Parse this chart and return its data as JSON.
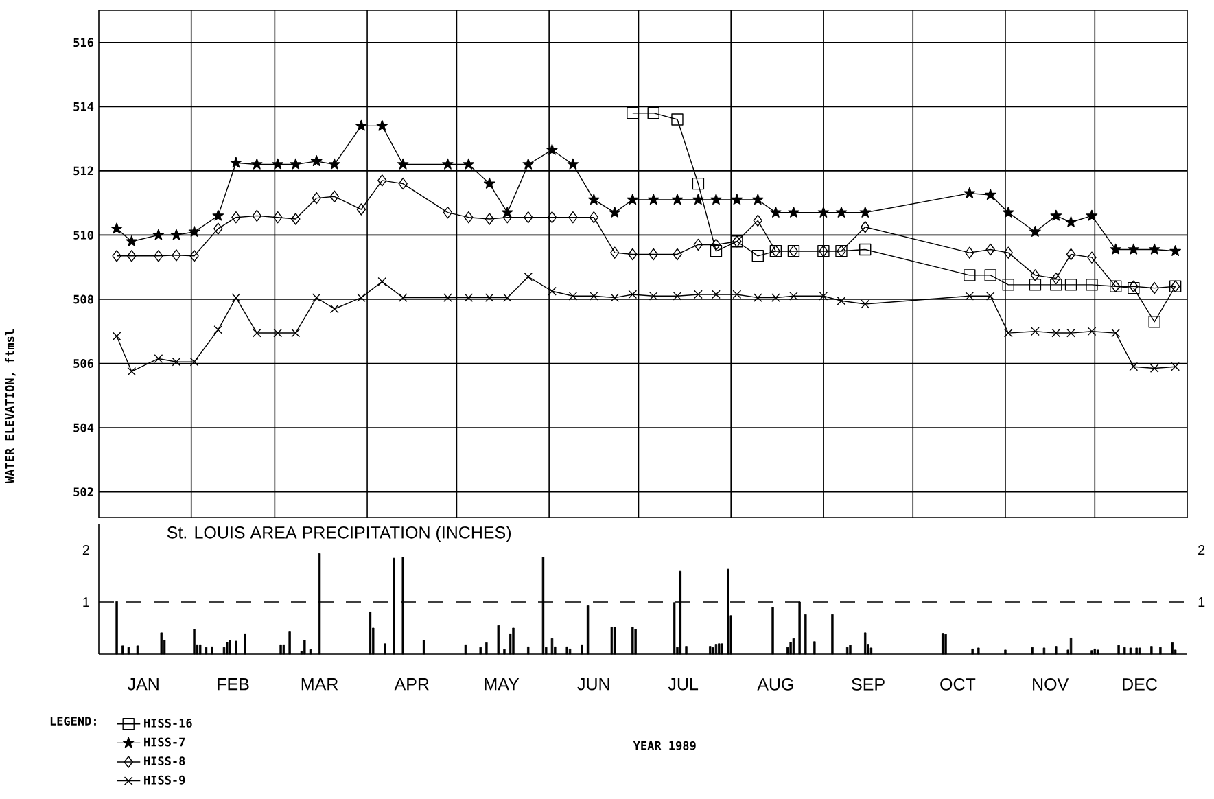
{
  "chart_data": [
    {
      "type": "line",
      "ylabel": "WATER ELEVATION, ftmsl",
      "legend_title": "LEGEND:",
      "legend": "bottom left",
      "grid": true,
      "tick_labels": "y",
      "line_style": "solid",
      "xlim": [
        "1989-01-01",
        "1990-01-01"
      ],
      "xticks": [
        {
          "value": "1989-02-01",
          "label": null
        },
        {
          "value": "1989-03-01",
          "label": null
        },
        {
          "value": "1989-04-01",
          "label": null
        },
        {
          "value": "1989-05-01",
          "label": null
        },
        {
          "value": "1989-06-01",
          "label": null
        },
        {
          "value": "1989-07-01",
          "label": null
        },
        {
          "value": "1989-08-01",
          "label": null
        },
        {
          "value": "1989-09-01",
          "label": null
        },
        {
          "value": "1989-10-01",
          "label": null
        },
        {
          "value": "1989-11-01",
          "label": null
        },
        {
          "value": "1989-12-01",
          "label": null
        }
      ],
      "ylim": [
        501.2,
        517
      ],
      "yticks": [
        502,
        504,
        506,
        508,
        510,
        512,
        514,
        516
      ],
      "x": [
        "1989-01-07",
        "1989-01-12",
        "1989-01-21",
        "1989-01-27",
        "1989-02-02",
        "1989-02-10",
        "1989-02-16",
        "1989-02-23",
        "1989-03-02",
        "1989-03-08",
        "1989-03-15",
        "1989-03-21",
        "1989-03-30",
        "1989-04-06",
        "1989-04-13",
        "1989-04-28",
        "1989-05-05",
        "1989-05-12",
        "1989-05-18",
        "1989-05-25",
        "1989-06-02",
        "1989-06-09",
        "1989-06-16",
        "1989-06-23",
        "1989-06-29",
        "1989-07-06",
        "1989-07-14",
        "1989-07-21",
        "1989-07-27",
        "1989-08-03",
        "1989-08-10",
        "1989-08-16",
        "1989-08-22",
        "1989-09-01",
        "1989-09-07",
        "1989-09-15",
        "1989-10-20",
        "1989-10-27",
        "1989-11-02",
        "1989-11-11",
        "1989-11-18",
        "1989-11-23",
        "1989-11-30",
        "1989-12-08",
        "1989-12-14",
        "1989-12-21",
        "1989-12-28"
      ],
      "series": [
        {
          "name": "HISS-16",
          "color": "#000000",
          "marker": "square",
          "x": [
            "1989-06-29",
            "1989-07-06",
            "1989-07-14",
            "1989-07-21",
            "1989-07-27",
            "1989-08-03",
            "1989-08-10",
            "1989-08-16",
            "1989-08-22",
            "1989-09-01",
            "1989-09-07",
            "1989-09-15",
            "1989-10-20",
            "1989-10-27",
            "1989-11-02",
            "1989-11-11",
            "1989-11-18",
            "1989-11-23",
            "1989-11-30",
            "1989-12-08",
            "1989-12-14",
            "1989-12-21",
            "1989-12-28"
          ],
          "values": [
            513.8,
            513.8,
            513.6,
            511.6,
            509.5,
            509.8,
            509.35,
            509.5,
            509.5,
            509.5,
            509.5,
            509.55,
            508.75,
            508.75,
            508.45,
            508.45,
            508.45,
            508.45,
            508.45,
            508.4,
            508.35,
            507.3,
            508.4
          ]
        },
        {
          "name": "HISS-7",
          "color": "#000000",
          "marker": "star",
          "values": [
            510.2,
            509.8,
            510.0,
            510.0,
            510.1,
            510.6,
            512.25,
            512.2,
            512.2,
            512.2,
            512.3,
            512.2,
            513.4,
            513.4,
            512.2,
            512.2,
            512.2,
            511.6,
            510.7,
            512.2,
            512.65,
            512.2,
            511.1,
            510.7,
            511.1,
            511.1,
            511.1,
            511.1,
            511.1,
            511.1,
            511.1,
            510.7,
            510.7,
            510.7,
            510.7,
            510.7,
            511.3,
            511.25,
            510.7,
            510.1,
            510.6,
            510.4,
            510.6,
            509.55,
            509.55,
            509.55,
            509.5
          ]
        },
        {
          "name": "HISS-8",
          "color": "#000000",
          "marker": "diamond",
          "values": [
            509.35,
            509.35,
            509.35,
            509.37,
            509.35,
            510.2,
            510.55,
            510.6,
            510.55,
            510.5,
            511.15,
            511.2,
            510.8,
            511.7,
            511.6,
            510.7,
            510.55,
            510.5,
            510.55,
            510.55,
            510.55,
            510.55,
            510.55,
            509.45,
            509.4,
            509.4,
            509.4,
            509.7,
            509.7,
            509.8,
            510.45,
            509.5,
            509.5,
            509.5,
            509.5,
            510.25,
            509.45,
            509.55,
            509.45,
            508.75,
            508.65,
            509.4,
            509.3,
            508.4,
            508.4,
            508.35,
            508.4
          ]
        },
        {
          "name": "HISS-9",
          "color": "#000000",
          "marker": "cross",
          "values": [
            506.85,
            505.75,
            506.15,
            506.05,
            506.05,
            507.05,
            508.05,
            506.95,
            506.95,
            506.95,
            508.05,
            507.7,
            508.05,
            508.55,
            508.05,
            508.05,
            508.05,
            508.05,
            508.05,
            508.7,
            508.25,
            508.1,
            508.1,
            508.05,
            508.15,
            508.1,
            508.1,
            508.15,
            508.15,
            508.15,
            508.05,
            508.05,
            508.1,
            508.1,
            507.95,
            507.85,
            508.1,
            508.1,
            506.95,
            507.0,
            506.95,
            506.95,
            507.0,
            506.95,
            505.9,
            505.85,
            505.9
          ]
        }
      ]
    },
    {
      "type": "bar",
      "title": "St. LOUIS AREA PRECIPITATION (INCHES)",
      "xlabel": "YEAR 1989",
      "xlim": [
        "1989-01-01",
        "1990-01-01"
      ],
      "xticks": [
        {
          "value": "1989-01-16",
          "label": "JAN"
        },
        {
          "value": "1989-02-15",
          "label": "FEB"
        },
        {
          "value": "1989-03-16",
          "label": "MAR"
        },
        {
          "value": "1989-04-16",
          "label": "APR"
        },
        {
          "value": "1989-05-16",
          "label": "MAY"
        },
        {
          "value": "1989-06-16",
          "label": "JUN"
        },
        {
          "value": "1989-07-16",
          "label": "JUL"
        },
        {
          "value": "1989-08-16",
          "label": "AUG"
        },
        {
          "value": "1989-09-16",
          "label": "SEP"
        },
        {
          "value": "1989-10-16",
          "label": "OCT"
        },
        {
          "value": "1989-11-16",
          "label": "NOV"
        },
        {
          "value": "1989-12-16",
          "label": "DEC"
        }
      ],
      "ylim": [
        0,
        2.5
      ],
      "yticks": [
        1,
        2
      ],
      "y2lim": [
        0,
        2.5
      ],
      "y2ticks": [
        1,
        2
      ],
      "ref_lines": [
        {
          "axis": "y",
          "value": 1,
          "line_style": "dashed"
        }
      ],
      "x": [
        "1989-01-07",
        "1989-01-09",
        "1989-01-11",
        "1989-01-14",
        "1989-01-22",
        "1989-01-23",
        "1989-02-02",
        "1989-02-03",
        "1989-02-04",
        "1989-02-06",
        "1989-02-08",
        "1989-02-12",
        "1989-02-13",
        "1989-02-14",
        "1989-02-16",
        "1989-02-19",
        "1989-03-03",
        "1989-03-04",
        "1989-03-06",
        "1989-03-10",
        "1989-03-11",
        "1989-03-13",
        "1989-03-16",
        "1989-04-02",
        "1989-04-03",
        "1989-04-07",
        "1989-04-10",
        "1989-04-13",
        "1989-04-20",
        "1989-05-04",
        "1989-05-09",
        "1989-05-11",
        "1989-05-15",
        "1989-05-17",
        "1989-05-19",
        "1989-05-20",
        "1989-05-25",
        "1989-05-30",
        "1989-05-31",
        "1989-06-02",
        "1989-06-03",
        "1989-06-07",
        "1989-06-08",
        "1989-06-12",
        "1989-06-14",
        "1989-06-22",
        "1989-06-23",
        "1989-06-29",
        "1989-06-30",
        "1989-07-13",
        "1989-07-14",
        "1989-07-15",
        "1989-07-17",
        "1989-07-25",
        "1989-07-26",
        "1989-07-27",
        "1989-07-28",
        "1989-07-29",
        "1989-07-31",
        "1989-08-01",
        "1989-08-15",
        "1989-08-20",
        "1989-08-21",
        "1989-08-22",
        "1989-08-24",
        "1989-08-26",
        "1989-08-29",
        "1989-09-04",
        "1989-09-09",
        "1989-09-10",
        "1989-09-15",
        "1989-09-16",
        "1989-09-17",
        "1989-10-11",
        "1989-10-12",
        "1989-10-21",
        "1989-10-23",
        "1989-11-01",
        "1989-11-10",
        "1989-11-14",
        "1989-11-18",
        "1989-11-22",
        "1989-11-23",
        "1989-11-30",
        "1989-12-01",
        "1989-12-02",
        "1989-12-09",
        "1989-12-11",
        "1989-12-13",
        "1989-12-15",
        "1989-12-16",
        "1989-12-20",
        "1989-12-23",
        "1989-12-27",
        "1989-12-28"
      ],
      "color": "#000000",
      "values": [
        1.01,
        0.16,
        0.13,
        0.16,
        0.41,
        0.27,
        0.48,
        0.18,
        0.18,
        0.13,
        0.14,
        0.13,
        0.23,
        0.27,
        0.25,
        0.39,
        0.18,
        0.18,
        0.44,
        0.06,
        0.27,
        0.09,
        1.93,
        0.81,
        0.5,
        0.2,
        1.84,
        1.86,
        0.27,
        0.18,
        0.13,
        0.22,
        0.55,
        0.09,
        0.39,
        0.5,
        0.14,
        1.86,
        0.13,
        0.3,
        0.14,
        0.14,
        0.1,
        0.18,
        0.93,
        0.52,
        0.52,
        0.52,
        0.48,
        0.99,
        0.13,
        1.59,
        0.15,
        0.15,
        0.13,
        0.19,
        0.2,
        0.2,
        1.63,
        0.74,
        0.9,
        0.13,
        0.23,
        0.3,
        1.0,
        0.76,
        0.24,
        0.76,
        0.13,
        0.17,
        0.41,
        0.19,
        0.12,
        0.4,
        0.38,
        0.1,
        0.12,
        0.08,
        0.13,
        0.12,
        0.15,
        0.08,
        0.31,
        0.07,
        0.1,
        0.08,
        0.17,
        0.13,
        0.12,
        0.12,
        0.12,
        0.15,
        0.13,
        0.22,
        0.08
      ]
    }
  ]
}
